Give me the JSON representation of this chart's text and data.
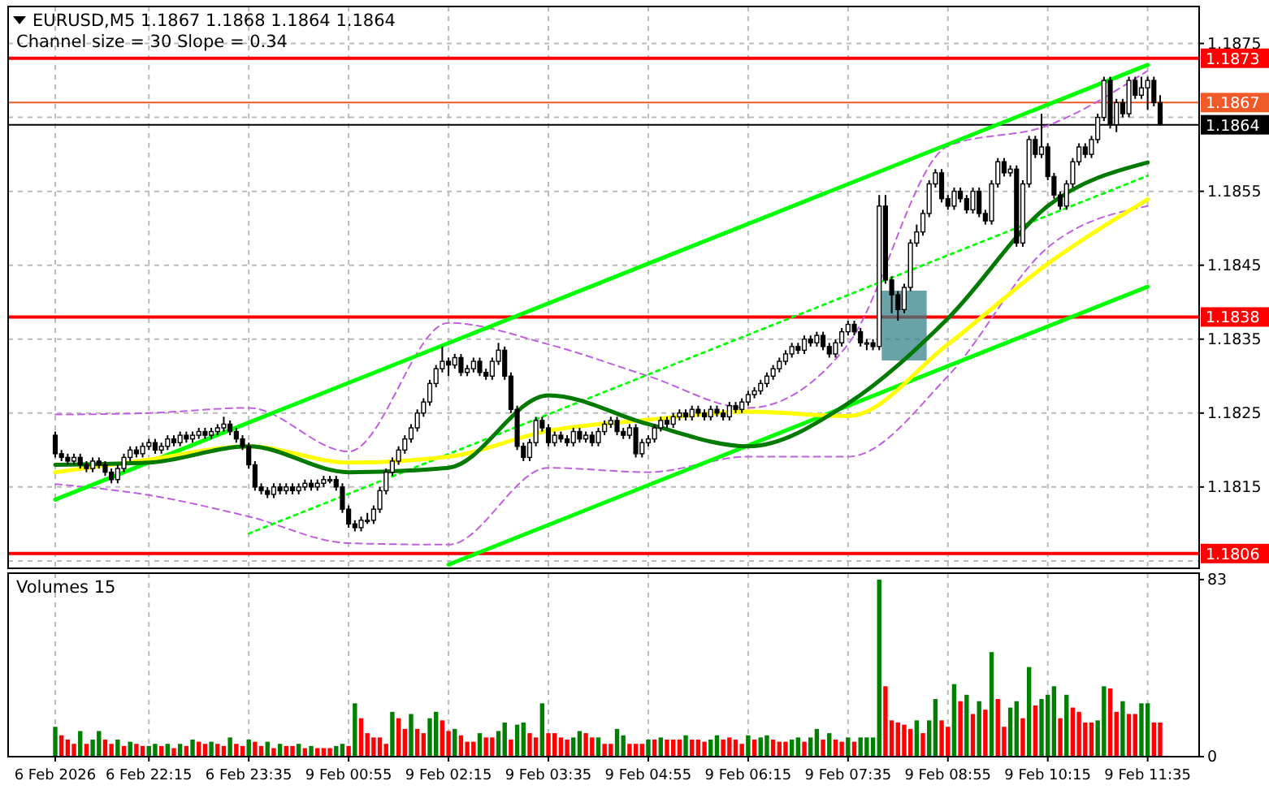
{
  "chart_data": [
    {
      "type": "candlestick",
      "title": "EURUSD,M5 1.1867 1.1868 1.1864 1.1864",
      "subtitle": "Channel size = 30 Slope = 0.34",
      "categories": [
        "6 Feb 2026",
        null,
        null,
        null,
        null,
        null,
        null,
        null,
        null,
        null,
        null,
        null,
        null,
        null,
        null,
        "6 Feb 22:15",
        null,
        null,
        null,
        null,
        null,
        null,
        null,
        null,
        null,
        null,
        null,
        null,
        null,
        null,
        null,
        "6 Feb 23:35",
        null,
        null,
        null,
        null,
        null,
        null,
        null,
        null,
        null,
        null,
        null,
        null,
        null,
        null,
        null,
        "9 Feb 00:55",
        null,
        null,
        null,
        null,
        null,
        null,
        null,
        null,
        null,
        null,
        null,
        null,
        null,
        null,
        null,
        "9 Feb 02:15",
        null,
        null,
        null,
        null,
        null,
        null,
        null,
        null,
        null,
        null,
        null,
        null,
        null,
        null,
        null,
        "9 Feb 03:35",
        null,
        null,
        null,
        null,
        null,
        null,
        null,
        null,
        null,
        null,
        null,
        null,
        null,
        null,
        null,
        "9 Feb 04:55",
        null,
        null,
        null,
        null,
        null,
        null,
        null,
        null,
        null,
        null,
        null,
        null,
        null,
        null,
        null,
        "9 Feb 06:15",
        null,
        null,
        null,
        null,
        null,
        null,
        null,
        null,
        null,
        null,
        null,
        null,
        null,
        null,
        null,
        "9 Feb 07:35",
        null,
        null,
        null,
        null,
        null,
        null,
        null,
        null,
        null,
        null,
        null,
        null,
        null,
        null,
        null,
        "9 Feb 08:55",
        null,
        null,
        null,
        null,
        null,
        null,
        null,
        null,
        null,
        null,
        null,
        null,
        null,
        null,
        null,
        "9 Feb 10:15",
        null,
        null,
        null,
        null,
        null,
        null,
        null,
        null,
        null,
        null,
        null,
        null,
        null,
        null,
        null,
        "9 Feb 11:35",
        null,
        null
      ],
      "ohlc": [
        [
          1.1822,
          1.18225,
          1.1819,
          1.18195
        ],
        [
          1.18195,
          1.182,
          1.18185,
          1.1819
        ],
        [
          1.1819,
          1.18195,
          1.1818,
          1.18185
        ],
        [
          1.18185,
          1.18195,
          1.1818,
          1.1819
        ],
        [
          1.1819,
          1.18195,
          1.18175,
          1.1818
        ],
        [
          1.1818,
          1.18185,
          1.1817,
          1.18175
        ],
        [
          1.18175,
          1.1819,
          1.1817,
          1.18185
        ],
        [
          1.18185,
          1.1819,
          1.18175,
          1.1818
        ],
        [
          1.1818,
          1.18185,
          1.18165,
          1.1817
        ],
        [
          1.1817,
          1.18175,
          1.18155,
          1.1816
        ],
        [
          1.1816,
          1.1818,
          1.18155,
          1.18175
        ],
        [
          1.18175,
          1.18195,
          1.1817,
          1.1819
        ],
        [
          1.1819,
          1.18205,
          1.18185,
          1.182
        ],
        [
          1.182,
          1.18205,
          1.1819,
          1.18195
        ],
        [
          1.18195,
          1.1821,
          1.1819,
          1.18205
        ],
        [
          1.18205,
          1.18215,
          1.182,
          1.1821
        ],
        [
          1.1821,
          1.18215,
          1.18195,
          1.182
        ],
        [
          1.182,
          1.1821,
          1.18195,
          1.18205
        ],
        [
          1.18205,
          1.1822,
          1.182,
          1.18215
        ],
        [
          1.18215,
          1.1822,
          1.18205,
          1.1821
        ],
        [
          1.1821,
          1.18225,
          1.18205,
          1.1822
        ],
        [
          1.1822,
          1.18225,
          1.1821,
          1.18215
        ],
        [
          1.18215,
          1.18225,
          1.1821,
          1.1822
        ],
        [
          1.1822,
          1.1823,
          1.18215,
          1.18225
        ],
        [
          1.18225,
          1.1823,
          1.18215,
          1.1822
        ],
        [
          1.1822,
          1.1823,
          1.18215,
          1.18225
        ],
        [
          1.18225,
          1.18235,
          1.1822,
          1.1823
        ],
        [
          1.1823,
          1.18245,
          1.18225,
          1.18235
        ],
        [
          1.18235,
          1.1824,
          1.1822,
          1.18225
        ],
        [
          1.18225,
          1.1823,
          1.1821,
          1.18215
        ],
        [
          1.18215,
          1.1822,
          1.182,
          1.18205
        ],
        [
          1.18205,
          1.1821,
          1.18175,
          1.1818
        ],
        [
          1.1818,
          1.18185,
          1.18145,
          1.1815
        ],
        [
          1.1815,
          1.18155,
          1.1814,
          1.18145
        ],
        [
          1.18145,
          1.1815,
          1.18135,
          1.1814
        ],
        [
          1.1814,
          1.18155,
          1.18135,
          1.1815
        ],
        [
          1.1815,
          1.18155,
          1.1814,
          1.18145
        ],
        [
          1.18145,
          1.18155,
          1.1814,
          1.1815
        ],
        [
          1.1815,
          1.18155,
          1.1814,
          1.18145
        ],
        [
          1.18145,
          1.18155,
          1.1814,
          1.1815
        ],
        [
          1.1815,
          1.1816,
          1.18145,
          1.18155
        ],
        [
          1.18155,
          1.1816,
          1.18145,
          1.1815
        ],
        [
          1.1815,
          1.1816,
          1.18145,
          1.18155
        ],
        [
          1.18155,
          1.18165,
          1.1815,
          1.1816
        ],
        [
          1.1816,
          1.18165,
          1.18155,
          1.1816
        ],
        [
          1.1816,
          1.18165,
          1.18145,
          1.1815
        ],
        [
          1.1815,
          1.18155,
          1.18115,
          1.1812
        ],
        [
          1.1812,
          1.18125,
          1.18095,
          1.181
        ],
        [
          1.181,
          1.18105,
          1.1809,
          1.18095
        ],
        [
          1.18095,
          1.1811,
          1.1809,
          1.18105
        ],
        [
          1.18105,
          1.18115,
          1.181,
          1.18105
        ],
        [
          1.18105,
          1.18125,
          1.181,
          1.1812
        ],
        [
          1.1812,
          1.1815,
          1.18115,
          1.18145
        ],
        [
          1.18145,
          1.18175,
          1.1814,
          1.1817
        ],
        [
          1.1817,
          1.1819,
          1.18165,
          1.18185
        ],
        [
          1.18185,
          1.18205,
          1.1818,
          1.182
        ],
        [
          1.182,
          1.1822,
          1.18195,
          1.18215
        ],
        [
          1.18215,
          1.18235,
          1.1821,
          1.1823
        ],
        [
          1.1823,
          1.18255,
          1.18225,
          1.1825
        ],
        [
          1.1825,
          1.1827,
          1.18245,
          1.18265
        ],
        [
          1.18265,
          1.18295,
          1.1826,
          1.1829
        ],
        [
          1.1829,
          1.18315,
          1.18285,
          1.1831
        ],
        [
          1.1831,
          1.1834,
          1.18305,
          1.1832
        ],
        [
          1.1832,
          1.18325,
          1.183,
          1.18315
        ],
        [
          1.18315,
          1.1833,
          1.1831,
          1.18325
        ],
        [
          1.18325,
          1.1833,
          1.183,
          1.18305
        ],
        [
          1.18305,
          1.18315,
          1.183,
          1.1831
        ],
        [
          1.1831,
          1.18325,
          1.18305,
          1.1832
        ],
        [
          1.1832,
          1.18325,
          1.183,
          1.18305
        ],
        [
          1.18305,
          1.1831,
          1.18295,
          1.183
        ],
        [
          1.183,
          1.18325,
          1.18295,
          1.1832
        ],
        [
          1.1832,
          1.18345,
          1.18315,
          1.18335
        ],
        [
          1.18335,
          1.1834,
          1.18295,
          1.183
        ],
        [
          1.183,
          1.18305,
          1.1825,
          1.18255
        ],
        [
          1.18255,
          1.1826,
          1.182,
          1.18205
        ],
        [
          1.18205,
          1.1821,
          1.18185,
          1.1819
        ],
        [
          1.1819,
          1.18215,
          1.18185,
          1.1821
        ],
        [
          1.1821,
          1.18245,
          1.18205,
          1.1824
        ],
        [
          1.1824,
          1.18245,
          1.18225,
          1.1823
        ],
        [
          1.1823,
          1.18235,
          1.18205,
          1.1821
        ],
        [
          1.1821,
          1.18225,
          1.18205,
          1.1822
        ],
        [
          1.1822,
          1.18225,
          1.1821,
          1.18215
        ],
        [
          1.18215,
          1.1822,
          1.18205,
          1.1821
        ],
        [
          1.1821,
          1.1823,
          1.18205,
          1.18225
        ],
        [
          1.18225,
          1.1823,
          1.1821,
          1.18215
        ],
        [
          1.18215,
          1.18225,
          1.1821,
          1.1822
        ],
        [
          1.1822,
          1.18225,
          1.18205,
          1.1821
        ],
        [
          1.1821,
          1.1823,
          1.18205,
          1.18225
        ],
        [
          1.18225,
          1.1824,
          1.1822,
          1.18235
        ],
        [
          1.18235,
          1.18245,
          1.1823,
          1.1824
        ],
        [
          1.1824,
          1.18245,
          1.1822,
          1.18225
        ],
        [
          1.18225,
          1.1823,
          1.18215,
          1.1822
        ],
        [
          1.1822,
          1.18235,
          1.18215,
          1.1823
        ],
        [
          1.1823,
          1.18235,
          1.1819,
          1.18195
        ],
        [
          1.18195,
          1.18215,
          1.1819,
          1.1821
        ],
        [
          1.1821,
          1.1822,
          1.18205,
          1.18215
        ],
        [
          1.18215,
          1.18235,
          1.1821,
          1.1823
        ],
        [
          1.1823,
          1.18245,
          1.18225,
          1.1824
        ],
        [
          1.1824,
          1.18245,
          1.1823,
          1.18235
        ],
        [
          1.18235,
          1.1825,
          1.1823,
          1.18245
        ],
        [
          1.18245,
          1.18255,
          1.1824,
          1.1825
        ],
        [
          1.1825,
          1.18255,
          1.1824,
          1.18245
        ],
        [
          1.18245,
          1.1826,
          1.1824,
          1.18255
        ],
        [
          1.18255,
          1.1826,
          1.18245,
          1.1825
        ],
        [
          1.1825,
          1.18255,
          1.1824,
          1.18245
        ],
        [
          1.18245,
          1.1826,
          1.1824,
          1.18255
        ],
        [
          1.18255,
          1.1826,
          1.18245,
          1.1825
        ],
        [
          1.1825,
          1.18255,
          1.1824,
          1.18245
        ],
        [
          1.18245,
          1.18265,
          1.1824,
          1.1826
        ],
        [
          1.1826,
          1.18265,
          1.1825,
          1.18255
        ],
        [
          1.18255,
          1.1827,
          1.1825,
          1.18265
        ],
        [
          1.18265,
          1.1828,
          1.1826,
          1.18275
        ],
        [
          1.18275,
          1.18285,
          1.1827,
          1.1828
        ],
        [
          1.1828,
          1.18295,
          1.18275,
          1.1829
        ],
        [
          1.1829,
          1.18305,
          1.18285,
          1.183
        ],
        [
          1.183,
          1.18315,
          1.18295,
          1.1831
        ],
        [
          1.1831,
          1.18325,
          1.18305,
          1.1832
        ],
        [
          1.1832,
          1.18335,
          1.18315,
          1.1833
        ],
        [
          1.1833,
          1.18345,
          1.18325,
          1.1834
        ],
        [
          1.1834,
          1.18345,
          1.1833,
          1.18335
        ],
        [
          1.18335,
          1.18355,
          1.1833,
          1.1835
        ],
        [
          1.1835,
          1.18355,
          1.1834,
          1.18345
        ],
        [
          1.18345,
          1.1836,
          1.1834,
          1.18355
        ],
        [
          1.18355,
          1.1836,
          1.18335,
          1.1834
        ],
        [
          1.1834,
          1.18345,
          1.18325,
          1.1833
        ],
        [
          1.1833,
          1.1835,
          1.18325,
          1.18345
        ],
        [
          1.18345,
          1.18365,
          1.1834,
          1.1836
        ],
        [
          1.1836,
          1.18375,
          1.18355,
          1.1837
        ],
        [
          1.1837,
          1.18375,
          1.18355,
          1.1836
        ],
        [
          1.1836,
          1.18365,
          1.1834,
          1.18345
        ],
        [
          1.18345,
          1.1835,
          1.18335,
          1.18345
        ],
        [
          1.18345,
          1.1835,
          1.18335,
          1.1834
        ],
        [
          1.1834,
          1.18545,
          1.18335,
          1.1853
        ],
        [
          1.1853,
          1.18545,
          1.18425,
          1.1843
        ],
        [
          1.1843,
          1.18435,
          1.18385,
          1.1841
        ],
        [
          1.1841,
          1.18415,
          1.18375,
          1.1839
        ],
        [
          1.1839,
          1.18425,
          1.18385,
          1.1842
        ],
        [
          1.1842,
          1.18485,
          1.18415,
          1.1848
        ],
        [
          1.1848,
          1.18505,
          1.18475,
          1.18495
        ],
        [
          1.18495,
          1.18525,
          1.1849,
          1.1852
        ],
        [
          1.1852,
          1.18565,
          1.18515,
          1.1856
        ],
        [
          1.1856,
          1.1858,
          1.18555,
          1.18575
        ],
        [
          1.18575,
          1.1858,
          1.18535,
          1.1854
        ],
        [
          1.1854,
          1.18545,
          1.18525,
          1.1853
        ],
        [
          1.1853,
          1.18555,
          1.18525,
          1.1855
        ],
        [
          1.1855,
          1.18555,
          1.18535,
          1.1854
        ],
        [
          1.1854,
          1.18545,
          1.1852,
          1.18525
        ],
        [
          1.18525,
          1.18555,
          1.1852,
          1.1855
        ],
        [
          1.1855,
          1.18555,
          1.18515,
          1.1852
        ],
        [
          1.1852,
          1.18525,
          1.18505,
          1.1851
        ],
        [
          1.1851,
          1.18565,
          1.18505,
          1.1856
        ],
        [
          1.1856,
          1.18595,
          1.18555,
          1.1859
        ],
        [
          1.1859,
          1.18595,
          1.1857,
          1.18575
        ],
        [
          1.18575,
          1.18585,
          1.1857,
          1.1858
        ],
        [
          1.1858,
          1.18585,
          1.18475,
          1.1848
        ],
        [
          1.1848,
          1.18565,
          1.18475,
          1.1856
        ],
        [
          1.1856,
          1.18625,
          1.18555,
          1.1862
        ],
        [
          1.1862,
          1.18625,
          1.18595,
          1.186
        ],
        [
          1.186,
          1.18655,
          1.18595,
          1.1861
        ],
        [
          1.1861,
          1.18615,
          1.18565,
          1.1857
        ],
        [
          1.1857,
          1.18575,
          1.1854,
          1.18545
        ],
        [
          1.18545,
          1.1855,
          1.18525,
          1.1853
        ],
        [
          1.1853,
          1.18565,
          1.18525,
          1.1856
        ],
        [
          1.1856,
          1.18595,
          1.18555,
          1.1859
        ],
        [
          1.1859,
          1.18615,
          1.18585,
          1.1861
        ],
        [
          1.1861,
          1.18615,
          1.18595,
          1.186
        ],
        [
          1.186,
          1.18625,
          1.18595,
          1.1862
        ],
        [
          1.1862,
          1.18655,
          1.18615,
          1.1865
        ],
        [
          1.1865,
          1.18705,
          1.18645,
          1.187
        ],
        [
          1.187,
          1.18705,
          1.18635,
          1.1864
        ],
        [
          1.1864,
          1.18675,
          1.1863,
          1.1867
        ],
        [
          1.1867,
          1.18675,
          1.1865,
          1.18655
        ],
        [
          1.18655,
          1.18705,
          1.1865,
          1.187
        ],
        [
          1.187,
          1.18705,
          1.18675,
          1.1868
        ],
        [
          1.1868,
          1.18705,
          1.18675,
          1.1869
        ],
        [
          1.1869,
          1.18705,
          1.1866,
          1.187
        ],
        [
          1.187,
          1.18705,
          1.18665,
          1.1867
        ],
        [
          1.1867,
          1.1868,
          1.1864,
          1.1864
        ]
      ],
      "series": [
        {
          "type": "line",
          "color": "#c060e0",
          "line_style": "dashed",
          "x": [
            "6 Feb 2026",
            "6 Feb 22:15",
            "6 Feb 23:35",
            "9 Feb 00:55",
            "9 Feb 02:15",
            "9 Feb 03:35",
            "9 Feb 04:55",
            "9 Feb 06:15",
            "9 Feb 07:35",
            "9 Feb 08:55",
            "9 Feb 10:15",
            "9 Feb 11:35"
          ],
          "values": [
            1.18248,
            1.1825,
            1.18257,
            1.18198,
            1.18372,
            1.18343,
            1.183,
            1.18257,
            1.18343,
            1.18611,
            1.18639,
            1.18713
          ]
        },
        {
          "type": "line",
          "color": "#c060e0",
          "line_style": "dashed",
          "x": [
            "6 Feb 2026",
            "6 Feb 22:15",
            "6 Feb 23:35",
            "9 Feb 00:55",
            "9 Feb 02:15",
            "9 Feb 03:35",
            "9 Feb 04:55",
            "9 Feb 06:15",
            "9 Feb 07:35",
            "9 Feb 08:55",
            "9 Feb 10:15",
            "9 Feb 11:35"
          ],
          "values": [
            1.18154,
            1.18139,
            1.1811,
            1.18074,
            1.18072,
            1.18176,
            1.1817,
            1.18191,
            1.18191,
            1.183,
            1.18474,
            1.1853
          ]
        },
        {
          "type": "line",
          "color": "#00ff00",
          "line_style": "dotted",
          "x": [
            "6 Feb 23:35",
            "9 Feb 11:35"
          ],
          "values": [
            1.18087,
            1.18571
          ]
        },
        {
          "type": "line",
          "color": "#00ff00",
          "line_style": "solid",
          "x": [
            "6 Feb 2026",
            "9 Feb 11:35"
          ],
          "values": [
            1.18133,
            1.18721
          ]
        },
        {
          "type": "line",
          "color": "#00ff00",
          "line_style": "solid",
          "x": [
            "9 Feb 02:15",
            "9 Feb 11:35"
          ],
          "values": [
            1.18045,
            1.18421
          ]
        },
        {
          "type": "line",
          "color": "#ffff00",
          "line_style": "solid",
          "x": [
            "6 Feb 2026",
            "6 Feb 22:15",
            "6 Feb 23:35",
            "9 Feb 00:55",
            "9 Feb 02:15",
            "9 Feb 03:35",
            "9 Feb 04:55",
            "9 Feb 06:15",
            "9 Feb 07:35",
            "9 Feb 08:55",
            "9 Feb 10:15",
            "9 Feb 11:35"
          ],
          "values": [
            1.1817,
            1.18187,
            1.18205,
            1.18183,
            1.18191,
            1.18226,
            1.18241,
            1.18252,
            1.18246,
            1.18343,
            1.18452,
            1.18539
          ]
        },
        {
          "type": "line",
          "color": "#007a00",
          "line_style": "solid",
          "x": [
            "6 Feb 2026",
            "6 Feb 22:15",
            "6 Feb 23:35",
            "9 Feb 00:55",
            "9 Feb 02:15",
            "9 Feb 03:35",
            "9 Feb 04:55",
            "9 Feb 06:15",
            "9 Feb 07:35",
            "9 Feb 08:55",
            "9 Feb 10:15",
            "9 Feb 11:35"
          ],
          "values": [
            1.1818,
            1.18183,
            1.18205,
            1.1817,
            1.18176,
            1.18274,
            1.18235,
            1.18205,
            1.18263,
            1.18378,
            1.1853,
            1.18589
          ]
        }
      ],
      "ylim": [
        1.1804,
        1.188
      ],
      "yticks": [
        {
          "value": 1.1805,
          "label": null
        },
        1.1815,
        1.1825,
        1.1835,
        1.1845,
        1.1855,
        {
          "value": 1.1865,
          "label": null
        },
        1.1875
      ],
      "grid": true,
      "tick_labels": "y",
      "ref_lines": [
        {
          "axis": "y",
          "value": 1.1873,
          "label": "1.1873",
          "color": "#ff0000"
        },
        {
          "axis": "y",
          "value": 1.1867,
          "label": "1.1867",
          "color": "#f05a28"
        },
        {
          "axis": "y",
          "value": 1.1864,
          "label": "1.1864",
          "color": "#000000"
        },
        {
          "axis": "y",
          "value": 1.1838,
          "label": "1.1838",
          "color": "#ff0000"
        },
        {
          "axis": "y",
          "value": 1.1806,
          "label": "1.1806",
          "color": "#ff0000"
        }
      ]
    },
    {
      "type": "bar",
      "title": "Volumes 15",
      "categories": [
        "6 Feb 2026",
        null,
        null,
        null,
        null,
        null,
        null,
        null,
        null,
        null,
        null,
        null,
        null,
        null,
        null,
        "6 Feb 22:15",
        null,
        null,
        null,
        null,
        null,
        null,
        null,
        null,
        null,
        null,
        null,
        null,
        null,
        null,
        null,
        "6 Feb 23:35",
        null,
        null,
        null,
        null,
        null,
        null,
        null,
        null,
        null,
        null,
        null,
        null,
        null,
        null,
        null,
        "9 Feb 00:55",
        null,
        null,
        null,
        null,
        null,
        null,
        null,
        null,
        null,
        null,
        null,
        null,
        null,
        null,
        null,
        "9 Feb 02:15",
        null,
        null,
        null,
        null,
        null,
        null,
        null,
        null,
        null,
        null,
        null,
        null,
        null,
        null,
        null,
        "9 Feb 03:35",
        null,
        null,
        null,
        null,
        null,
        null,
        null,
        null,
        null,
        null,
        null,
        null,
        null,
        null,
        null,
        "9 Feb 04:55",
        null,
        null,
        null,
        null,
        null,
        null,
        null,
        null,
        null,
        null,
        null,
        null,
        null,
        null,
        null,
        "9 Feb 06:15",
        null,
        null,
        null,
        null,
        null,
        null,
        null,
        null,
        null,
        null,
        null,
        null,
        null,
        null,
        null,
        "9 Feb 07:35",
        null,
        null,
        null,
        null,
        null,
        null,
        null,
        null,
        null,
        null,
        null,
        null,
        null,
        null,
        null,
        "9 Feb 08:55",
        null,
        null,
        null,
        null,
        null,
        null,
        null,
        null,
        null,
        null,
        null,
        null,
        null,
        null,
        null,
        "9 Feb 10:15",
        null,
        null,
        null,
        null,
        null,
        null,
        null,
        null,
        null,
        null,
        null,
        null,
        null,
        null,
        null,
        "9 Feb 11:35",
        null,
        null
      ],
      "values": [
        14,
        10,
        8,
        6,
        12,
        6,
        8,
        12,
        8,
        6,
        8,
        5,
        7,
        6,
        5,
        5,
        6,
        5,
        6,
        4,
        6,
        5,
        8,
        7,
        6,
        7,
        6,
        5,
        9,
        6,
        5,
        8,
        7,
        5,
        7,
        4,
        6,
        5,
        5,
        6,
        4,
        5,
        4,
        4,
        4,
        5,
        6,
        5,
        25,
        18,
        11,
        9,
        9,
        6,
        21,
        18,
        13,
        20,
        13,
        11,
        18,
        21,
        17,
        12,
        13,
        10,
        7,
        7,
        11,
        9,
        9,
        12,
        16,
        8,
        15,
        16,
        11,
        9,
        25,
        11,
        11,
        9,
        8,
        9,
        12,
        11,
        9,
        9,
        6,
        6,
        13,
        10,
        6,
        6,
        6,
        8,
        8,
        9,
        8,
        8,
        8,
        10,
        8,
        8,
        7,
        8,
        10,
        8,
        9,
        8,
        6,
        10,
        8,
        9,
        10,
        8,
        7,
        7,
        8,
        9,
        7,
        9,
        13,
        8,
        11,
        8,
        7,
        9,
        7,
        9,
        9,
        9,
        83,
        33,
        17,
        16,
        15,
        13,
        17,
        11,
        17,
        27,
        17,
        14,
        34,
        26,
        29,
        20,
        26,
        22,
        49,
        27,
        14,
        23,
        26,
        18,
        42,
        24,
        27,
        29,
        33,
        18,
        29,
        23,
        21,
        16,
        16,
        17,
        33,
        32,
        21,
        26,
        20,
        20,
        25,
        25,
        16,
        16
      ],
      "colors": [
        "#008000",
        "#ff0000",
        "#ff0000",
        "#ff0000",
        "#008000",
        "#ff0000",
        "#008000",
        "#008000",
        "#ff0000",
        "#ff0000",
        "#008000",
        "#ff0000",
        "#008000",
        "#ff0000",
        "#ff0000",
        "#008000",
        "#008000",
        "#ff0000",
        "#008000",
        "#ff0000",
        "#008000",
        "#ff0000",
        "#008000",
        "#ff0000",
        "#ff0000",
        "#008000",
        "#ff0000",
        "#ff0000",
        "#008000",
        "#ff0000",
        "#ff0000",
        "#008000",
        "#ff0000",
        "#ff0000",
        "#008000",
        "#ff0000",
        "#008000",
        "#ff0000",
        "#ff0000",
        "#008000",
        "#ff0000",
        "#008000",
        "#ff0000",
        "#ff0000",
        "#ff0000",
        "#008000",
        "#008000",
        "#ff0000",
        "#008000",
        "#ff0000",
        "#ff0000",
        "#ff0000",
        "#ff0000",
        "#ff0000",
        "#008000",
        "#ff0000",
        "#ff0000",
        "#008000",
        "#ff0000",
        "#ff0000",
        "#008000",
        "#008000",
        "#ff0000",
        "#ff0000",
        "#008000",
        "#ff0000",
        "#ff0000",
        "#ff0000",
        "#008000",
        "#ff0000",
        "#ff0000",
        "#008000",
        "#008000",
        "#ff0000",
        "#008000",
        "#008000",
        "#ff0000",
        "#ff0000",
        "#008000",
        "#ff0000",
        "#ff0000",
        "#ff0000",
        "#ff0000",
        "#008000",
        "#008000",
        "#ff0000",
        "#ff0000",
        "#008000",
        "#ff0000",
        "#ff0000",
        "#008000",
        "#008000",
        "#ff0000",
        "#ff0000",
        "#ff0000",
        "#008000",
        "#ff0000",
        "#008000",
        "#ff0000",
        "#ff0000",
        "#ff0000",
        "#008000",
        "#ff0000",
        "#ff0000",
        "#ff0000",
        "#008000",
        "#008000",
        "#ff0000",
        "#ff0000",
        "#ff0000",
        "#ff0000",
        "#008000",
        "#ff0000",
        "#008000",
        "#008000",
        "#ff0000",
        "#ff0000",
        "#ff0000",
        "#008000",
        "#008000",
        "#ff0000",
        "#008000",
        "#008000",
        "#ff0000",
        "#008000",
        "#ff0000",
        "#ff0000",
        "#008000",
        "#ff0000",
        "#008000",
        "#008000",
        "#008000",
        "#008000",
        "#ff0000",
        "#ff0000",
        "#ff0000",
        "#ff0000",
        "#ff0000",
        "#008000",
        "#ff0000",
        "#008000",
        "#008000",
        "#ff0000",
        "#ff0000",
        "#008000",
        "#ff0000",
        "#008000",
        "#ff0000",
        "#008000",
        "#ff0000",
        "#008000",
        "#ff0000",
        "#ff0000",
        "#008000",
        "#008000",
        "#ff0000",
        "#008000",
        "#ff0000",
        "#008000",
        "#008000",
        "#008000",
        "#ff0000",
        "#008000",
        "#ff0000",
        "#ff0000",
        "#ff0000",
        "#ff0000",
        "#008000",
        "#008000",
        "#ff0000",
        "#ff0000",
        "#008000",
        "#ff0000",
        "#ff0000",
        "#008000",
        "#008000",
        "#ff0000",
        "#ff0000"
      ],
      "ylim": [
        0,
        86
      ],
      "yticks": [
        0,
        83
      ],
      "grid": "x"
    }
  ]
}
